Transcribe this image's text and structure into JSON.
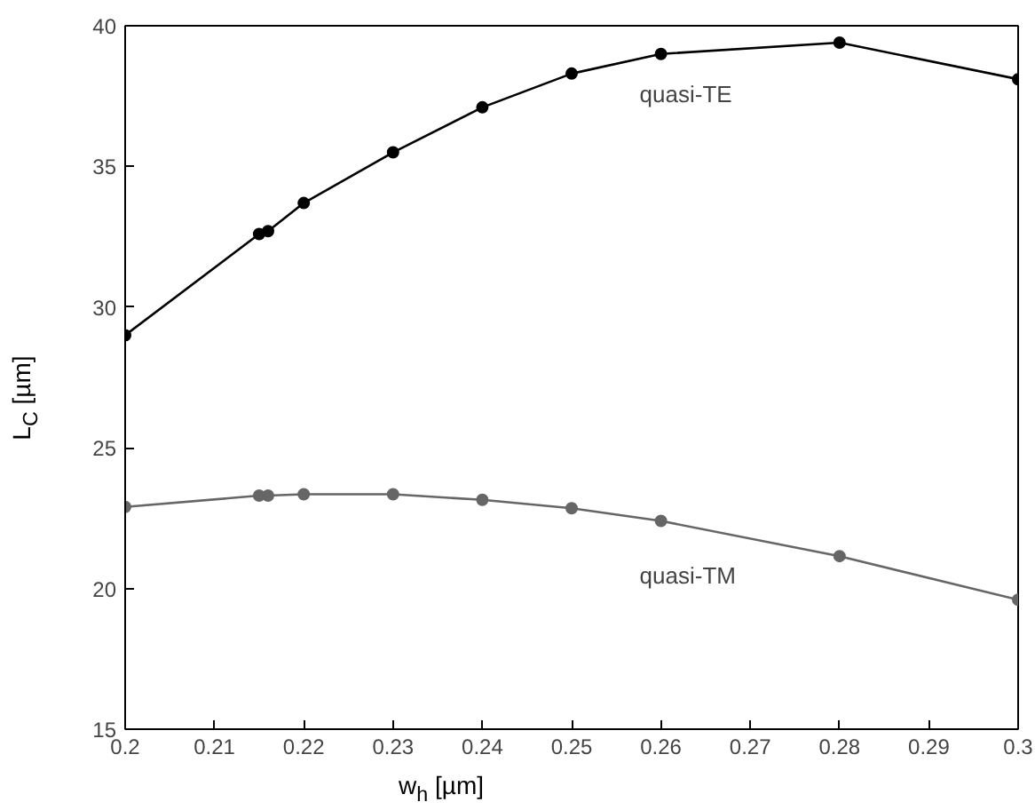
{
  "chart_data": {
    "type": "line",
    "xlabel": "w$_{h}$ [µm]",
    "ylabel": "L$_{C}$ [µm]",
    "xlim": [
      0.2,
      0.3
    ],
    "xticks": [
      0.2,
      0.21,
      0.22,
      0.23,
      0.24,
      0.25,
      0.26,
      0.27,
      0.28,
      0.29,
      0.3
    ],
    "ylim": [
      15,
      40
    ],
    "yticks": [
      15,
      20,
      25,
      30,
      35,
      40
    ],
    "grid": false,
    "marker": "circle",
    "line_style": "solid",
    "series": [
      {
        "name": "quasi-TE",
        "color": "#000000",
        "x": [
          0.2,
          0.215,
          0.216,
          0.22,
          0.23,
          0.24,
          0.25,
          0.26,
          0.28,
          0.3
        ],
        "values": [
          29.0,
          32.6,
          32.7,
          33.7,
          35.5,
          37.1,
          38.3,
          39.0,
          39.4,
          38.1
        ]
      },
      {
        "name": "quasi-TM",
        "color": "#666666",
        "x": [
          0.2,
          0.215,
          0.216,
          0.22,
          0.23,
          0.24,
          0.25,
          0.26,
          0.28,
          0.3
        ],
        "values": [
          22.9,
          23.3,
          23.3,
          23.35,
          23.35,
          23.15,
          22.85,
          22.4,
          21.15,
          19.6
        ]
      }
    ]
  }
}
